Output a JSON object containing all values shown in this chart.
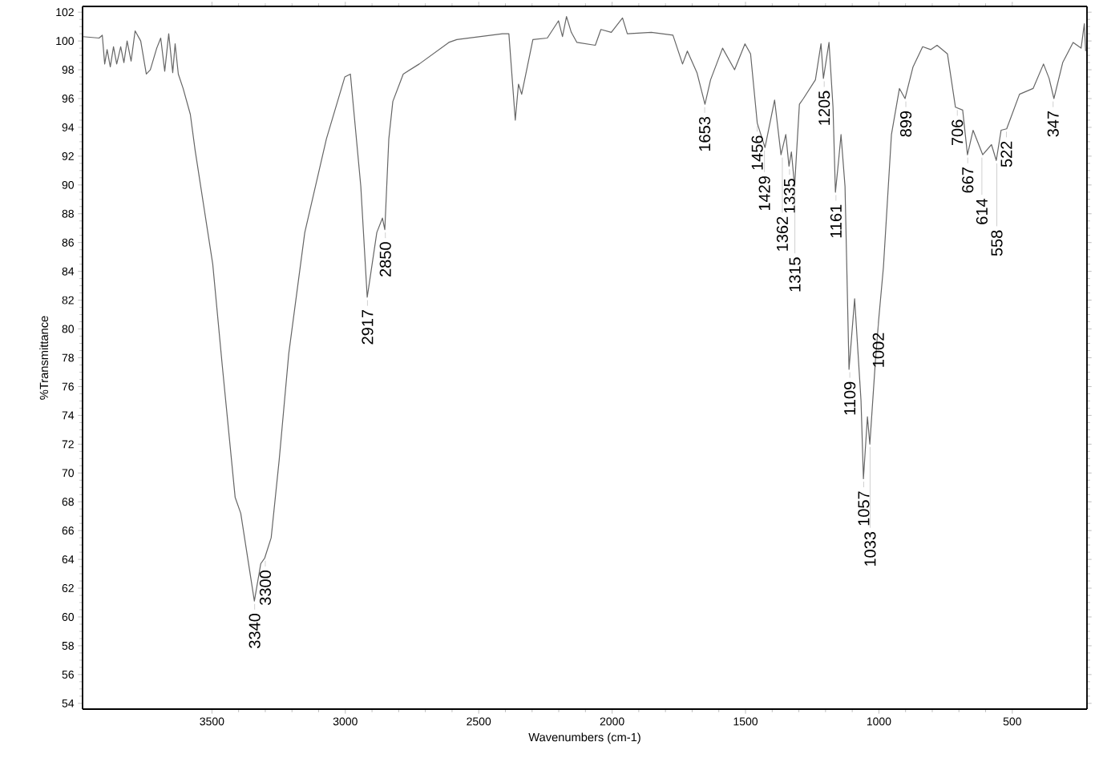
{
  "chart_data": {
    "type": "line",
    "xlabel": "Wavenumbers (cm-1)",
    "ylabel": "%Transmittance",
    "xlim": [
      3985,
      220
    ],
    "ylim": [
      53.6,
      102.4
    ],
    "xticks": [
      3500,
      3000,
      2500,
      2000,
      1500,
      1000,
      500
    ],
    "yticks": [
      54,
      56,
      58,
      60,
      62,
      64,
      66,
      68,
      70,
      72,
      74,
      76,
      78,
      80,
      82,
      84,
      86,
      88,
      90,
      92,
      94,
      96,
      98,
      100,
      102
    ],
    "line_style": "solid",
    "series": [
      {
        "color": "#666666",
        "x": [
          3983,
          3923,
          3911,
          3902,
          3893,
          3881,
          3869,
          3857,
          3842,
          3830,
          3818,
          3803,
          3788,
          3767,
          3746,
          3731,
          3707,
          3692,
          3677,
          3662,
          3647,
          3638,
          3626,
          3608,
          3581,
          3563,
          3497,
          3461,
          3413,
          3392,
          3341,
          3317,
          3302,
          3278,
          3248,
          3212,
          3152,
          3071,
          3002,
          2981,
          2942,
          2918,
          2906,
          2882,
          2861,
          2852,
          2837,
          2822,
          2783,
          2723,
          2612,
          2582,
          2411,
          2387,
          2363,
          2351,
          2339,
          2297,
          2243,
          2201,
          2186,
          2171,
          2153,
          2132,
          2063,
          2042,
          2003,
          1961,
          1943,
          1853,
          1772,
          1736,
          1718,
          1682,
          1652,
          1631,
          1586,
          1541,
          1502,
          1481,
          1456,
          1427,
          1391,
          1367,
          1349,
          1337,
          1328,
          1316,
          1298,
          1283,
          1238,
          1217,
          1208,
          1187,
          1172,
          1163,
          1151,
          1142,
          1127,
          1112,
          1091,
          1067,
          1058,
          1043,
          1034,
          1013,
          1001,
          983,
          953,
          923,
          902,
          872,
          836,
          806,
          782,
          743,
          713,
          686,
          668,
          647,
          611,
          578,
          560,
          542,
          521,
          473,
          422,
          383,
          362,
          344,
          311,
          272,
          242,
          230,
          225
        ],
        "values": [
          100.3,
          100.2,
          100.4,
          98.4,
          99.4,
          98.2,
          99.6,
          98.4,
          99.6,
          98.5,
          100.0,
          98.6,
          100.7,
          100.0,
          97.7,
          98.0,
          99.5,
          100.2,
          97.9,
          100.5,
          97.8,
          99.8,
          97.7,
          96.7,
          94.9,
          92.4,
          84.5,
          77.4,
          68.3,
          67.2,
          61.1,
          63.7,
          64.1,
          65.5,
          70.9,
          78.3,
          86.7,
          93.2,
          97.5,
          97.7,
          89.9,
          82.2,
          83.7,
          86.7,
          87.7,
          86.9,
          93.2,
          95.8,
          97.7,
          98.4,
          99.9,
          100.1,
          100.5,
          100.5,
          94.5,
          97.0,
          96.3,
          100.1,
          100.2,
          101.4,
          100.3,
          101.7,
          100.6,
          99.9,
          99.7,
          100.8,
          100.6,
          101.6,
          100.5,
          100.6,
          100.4,
          98.4,
          99.3,
          97.8,
          95.6,
          97.3,
          99.5,
          98.0,
          99.8,
          99.1,
          94.3,
          92.6,
          95.9,
          92.1,
          93.5,
          91.3,
          92.3,
          89.9,
          95.6,
          96.0,
          97.3,
          99.8,
          97.4,
          99.9,
          95.4,
          89.5,
          91.7,
          93.5,
          89.9,
          77.2,
          82.1,
          75.0,
          69.6,
          73.9,
          72.0,
          77.8,
          80.6,
          84.3,
          93.5,
          96.7,
          96.0,
          98.2,
          99.6,
          99.4,
          99.7,
          99.1,
          95.4,
          95.2,
          92.1,
          93.8,
          92.1,
          92.8,
          91.7,
          93.8,
          93.9,
          96.3,
          96.7,
          98.4,
          97.4,
          96.0,
          98.5,
          99.9,
          99.5,
          101.2,
          99.3
        ]
      }
    ],
    "annotations": [
      {
        "text": "3340",
        "x": 3340,
        "y": 61.1
      },
      {
        "text": "3300",
        "x": 3300,
        "y": 64.1
      },
      {
        "text": "2917",
        "x": 2917,
        "y": 82.2
      },
      {
        "text": "2850",
        "x": 2850,
        "y": 86.9
      },
      {
        "text": "1653",
        "x": 1653,
        "y": 95.6
      },
      {
        "text": "1456",
        "x": 1456,
        "y": 94.3
      },
      {
        "text": "1429",
        "x": 1429,
        "y": 92.6
      },
      {
        "text": "1362",
        "x": 1362,
        "y": 92.1
      },
      {
        "text": "1335",
        "x": 1335,
        "y": 91.3
      },
      {
        "text": "1315",
        "x": 1315,
        "y": 89.9
      },
      {
        "text": "1205",
        "x": 1205,
        "y": 97.4
      },
      {
        "text": "1161",
        "x": 1161,
        "y": 89.5
      },
      {
        "text": "1109",
        "x": 1109,
        "y": 77.2
      },
      {
        "text": "1057",
        "x": 1057,
        "y": 69.6
      },
      {
        "text": "1033",
        "x": 1033,
        "y": 72.0
      },
      {
        "text": "1002",
        "x": 1002,
        "y": 80.6
      },
      {
        "text": "899",
        "x": 899,
        "y": 96.0
      },
      {
        "text": "706",
        "x": 706,
        "y": 95.4
      },
      {
        "text": "667",
        "x": 667,
        "y": 92.1
      },
      {
        "text": "614",
        "x": 614,
        "y": 92.1
      },
      {
        "text": "558",
        "x": 558,
        "y": 91.7
      },
      {
        "text": "522",
        "x": 522,
        "y": 93.9
      },
      {
        "text": "347",
        "x": 347,
        "y": 96.0
      }
    ]
  }
}
